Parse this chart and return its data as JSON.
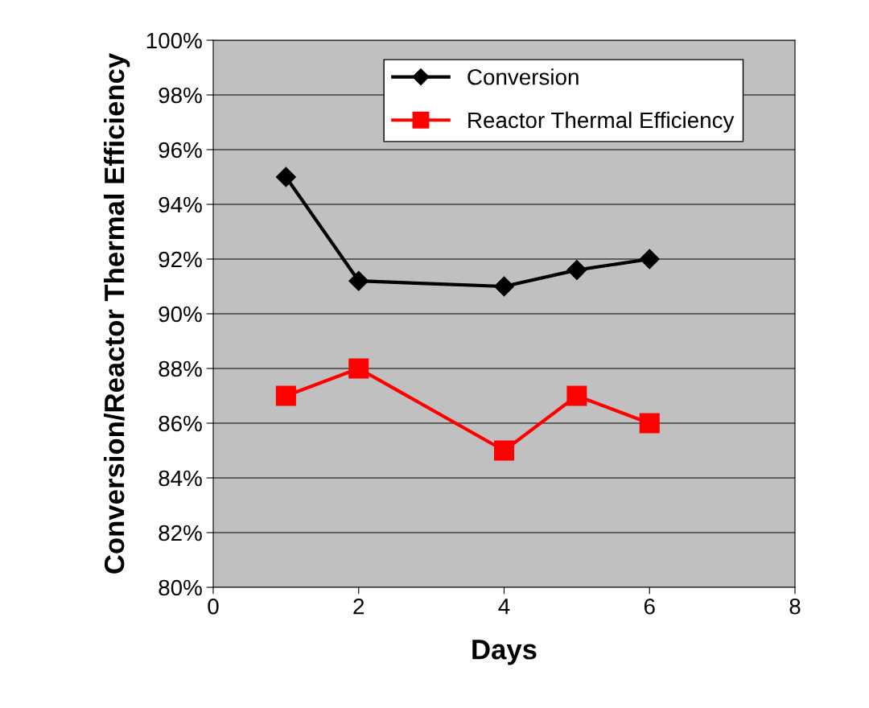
{
  "chart_data": {
    "type": "line",
    "xlabel": "Days",
    "ylabel": "Conversion/Reactor Thermal Efficiency",
    "series": [
      {
        "name": "Conversion",
        "color": "#000000",
        "marker": "diamond",
        "x": [
          1,
          2,
          4,
          5,
          6
        ],
        "values": [
          95,
          91.2,
          91,
          91.6,
          92
        ]
      },
      {
        "name": "Reactor Thermal Efficiency",
        "color": "#ff0000",
        "marker": "square",
        "x": [
          1,
          2,
          4,
          5,
          6
        ],
        "values": [
          87,
          88,
          85,
          87,
          86
        ]
      }
    ],
    "xlim": [
      0,
      8
    ],
    "xticks": [
      0,
      2,
      4,
      6,
      8
    ],
    "ylim": [
      80,
      100
    ],
    "yticks": [
      {
        "value": 80,
        "label": "80%"
      },
      {
        "value": 82,
        "label": "82%"
      },
      {
        "value": 84,
        "label": "84%"
      },
      {
        "value": 86,
        "label": "86%"
      },
      {
        "value": 88,
        "label": "88%"
      },
      {
        "value": 90,
        "label": "90%"
      },
      {
        "value": 92,
        "label": "92%"
      },
      {
        "value": 94,
        "label": "94%"
      },
      {
        "value": 96,
        "label": "96%"
      },
      {
        "value": 98,
        "label": "98%"
      },
      {
        "value": 100,
        "label": "100%"
      }
    ],
    "grid": "y",
    "legend": "top right",
    "line_style": "solid"
  }
}
